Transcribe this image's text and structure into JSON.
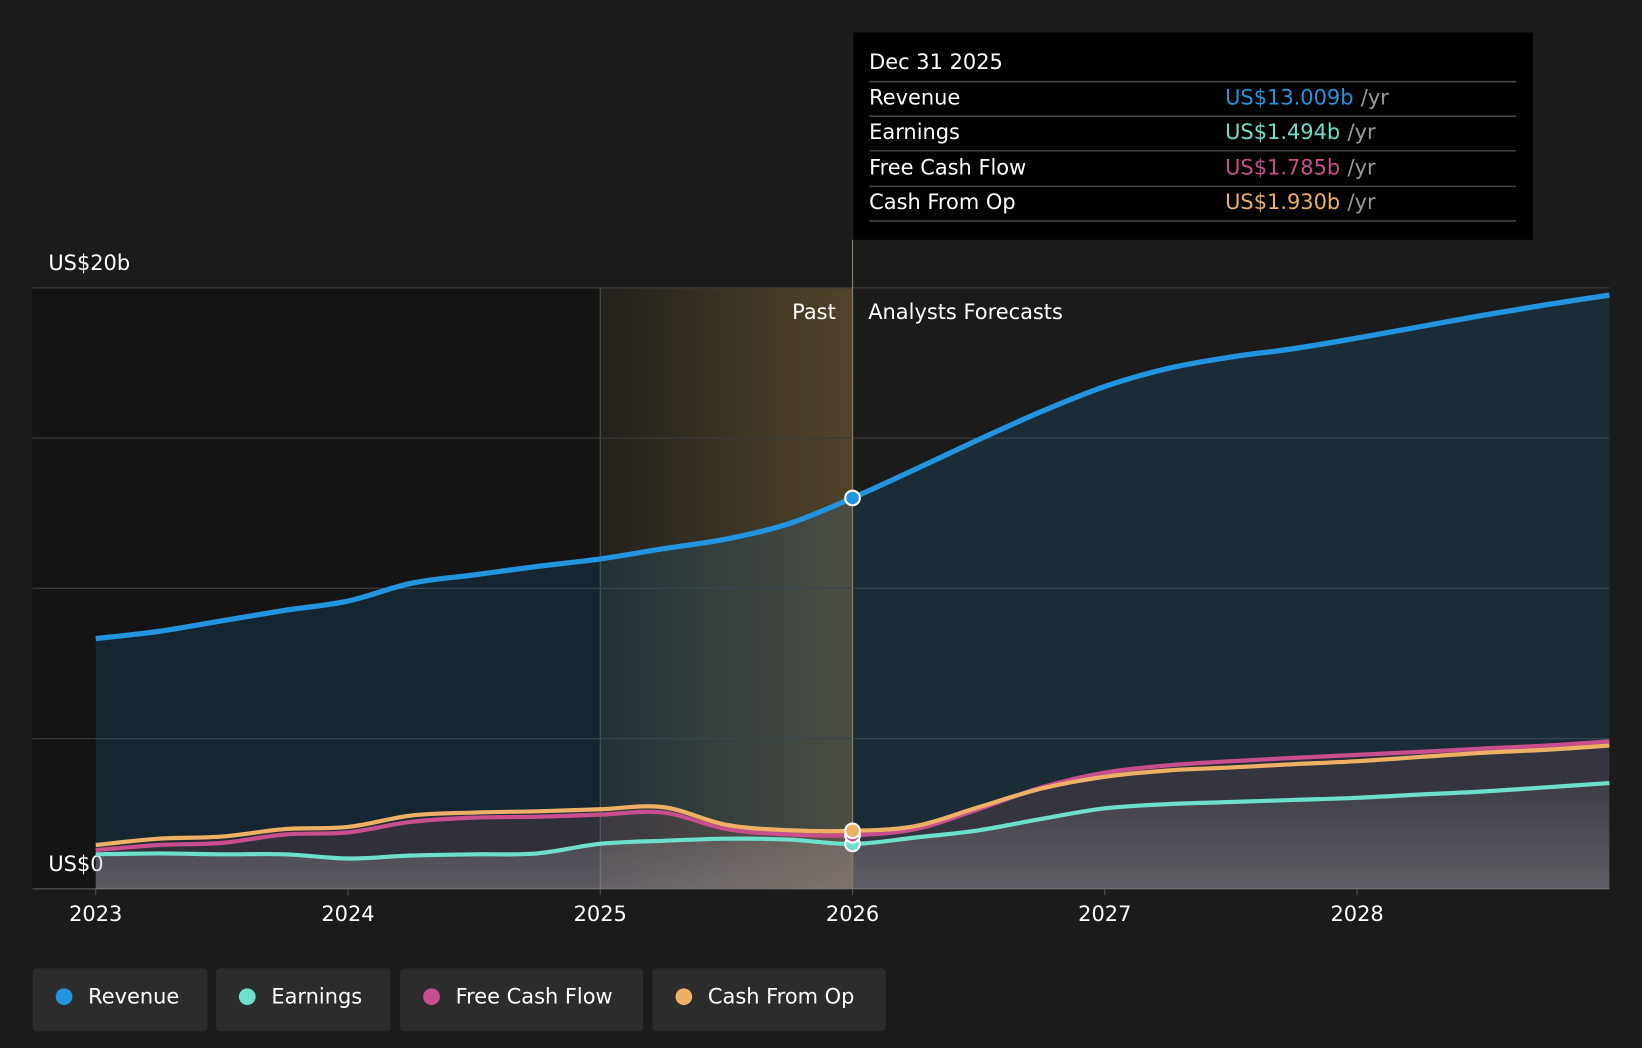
{
  "chart_data": {
    "type": "line",
    "x": [
      2023,
      2023.25,
      2023.5,
      2023.75,
      2024,
      2024.25,
      2024.5,
      2024.75,
      2025,
      2025.25,
      2025.5,
      2025.75,
      2026,
      2026.25,
      2026.5,
      2026.75,
      2027,
      2027.25,
      2027.5,
      2027.75,
      2028,
      2028.25,
      2028.5,
      2028.75,
      2029
    ],
    "series": [
      {
        "name": "Revenue",
        "color": "#2394df",
        "values": [
          8.33,
          8.57,
          8.92,
          9.27,
          9.58,
          10.17,
          10.45,
          10.73,
          10.98,
          11.32,
          11.64,
          12.16,
          13.009,
          13.97,
          14.95,
          15.89,
          16.72,
          17.32,
          17.7,
          17.98,
          18.33,
          18.71,
          19.09,
          19.44,
          19.76
        ]
      },
      {
        "name": "Earnings",
        "color": "#6ce0cb",
        "values": [
          1.15,
          1.18,
          1.15,
          1.15,
          1.01,
          1.11,
          1.15,
          1.18,
          1.5,
          1.6,
          1.67,
          1.64,
          1.494,
          1.71,
          1.95,
          2.33,
          2.68,
          2.82,
          2.89,
          2.96,
          3.03,
          3.14,
          3.24,
          3.38,
          3.52
        ]
      },
      {
        "name": "Free Cash Flow",
        "color": "#c84e8e",
        "values": [
          1.29,
          1.46,
          1.53,
          1.81,
          1.88,
          2.23,
          2.37,
          2.4,
          2.47,
          2.54,
          1.99,
          1.81,
          1.785,
          1.99,
          2.65,
          3.38,
          3.87,
          4.11,
          4.25,
          4.36,
          4.46,
          4.56,
          4.67,
          4.77,
          4.91
        ]
      },
      {
        "name": "Cash From Op",
        "color": "#eeb064",
        "values": [
          1.46,
          1.67,
          1.74,
          1.99,
          2.06,
          2.44,
          2.54,
          2.58,
          2.65,
          2.72,
          2.13,
          1.95,
          1.93,
          2.09,
          2.72,
          3.34,
          3.73,
          3.94,
          4.04,
          4.15,
          4.25,
          4.39,
          4.53,
          4.63,
          4.77
        ]
      }
    ],
    "xlim": [
      2022.75,
      2029
    ],
    "xticks": [
      2023,
      2024,
      2025,
      2026,
      2027,
      2028
    ],
    "ylim": [
      0,
      20
    ],
    "yticks": [
      {
        "value": 0,
        "label": "US$0"
      },
      {
        "value": 5,
        "label": null
      },
      {
        "value": 10,
        "label": null
      },
      {
        "value": 15,
        "label": null
      },
      {
        "value": 20,
        "label": "US$20b"
      }
    ],
    "grid": true,
    "highlight_start": 2025,
    "forecast_start": 2026,
    "past_label": "Past",
    "forecast_label": "Analysts Forecasts",
    "tooltip": {
      "date": "Dec 31 2025",
      "point_index": 12,
      "unit": "/yr",
      "rows": [
        {
          "name": "Revenue",
          "value": 13.009,
          "label": "US$13.009b"
        },
        {
          "name": "Earnings",
          "value": 1.494,
          "label": "US$1.494b"
        },
        {
          "name": "Free Cash Flow",
          "value": 1.785,
          "label": "US$1.785b"
        },
        {
          "name": "Cash From Op",
          "value": 1.93,
          "label": "US$1.930b"
        }
      ]
    }
  }
}
